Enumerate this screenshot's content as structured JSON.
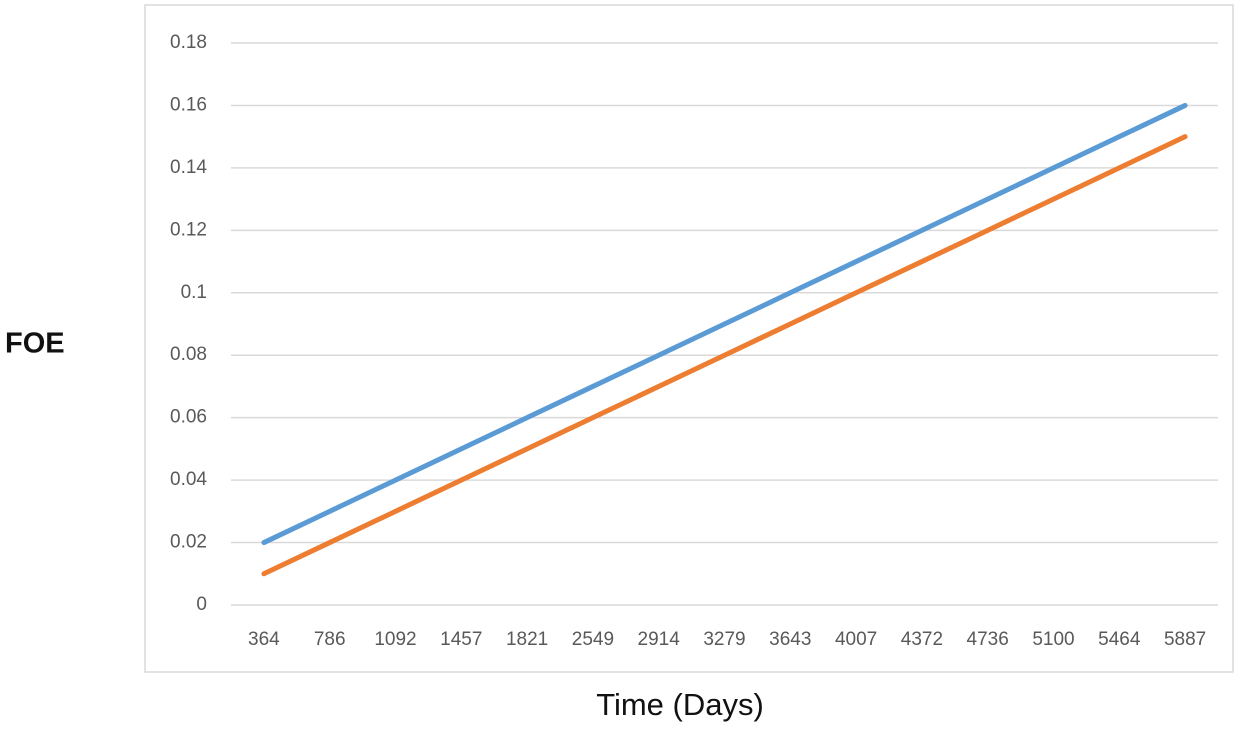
{
  "chart_data": {
    "type": "line",
    "y_label": "FOE",
    "x_label": "Time (Days)",
    "categories": [
      "364",
      "786",
      "1092",
      "1457",
      "1821",
      "2549",
      "2914",
      "3279",
      "3643",
      "4007",
      "4372",
      "4736",
      "5100",
      "5464",
      "5887"
    ],
    "series": [
      {
        "color": "#5b9bd5",
        "values": [
          0.02,
          0.03,
          0.04,
          0.05,
          0.06,
          0.07,
          0.08,
          0.09,
          0.1,
          0.11,
          0.12,
          0.13,
          0.14,
          0.15,
          0.16
        ]
      },
      {
        "color": "#ed7d31",
        "values": [
          0.01,
          0.02,
          0.03,
          0.04,
          0.05,
          0.06,
          0.07,
          0.08,
          0.09,
          0.1,
          0.11,
          0.12,
          0.13,
          0.14,
          0.15
        ]
      }
    ],
    "ylim": [
      0,
      0.18
    ],
    "yticks": [
      0,
      0.02,
      0.04,
      0.06,
      0.08,
      0.1,
      0.12,
      0.14,
      0.16,
      0.18
    ],
    "grid": true
  }
}
